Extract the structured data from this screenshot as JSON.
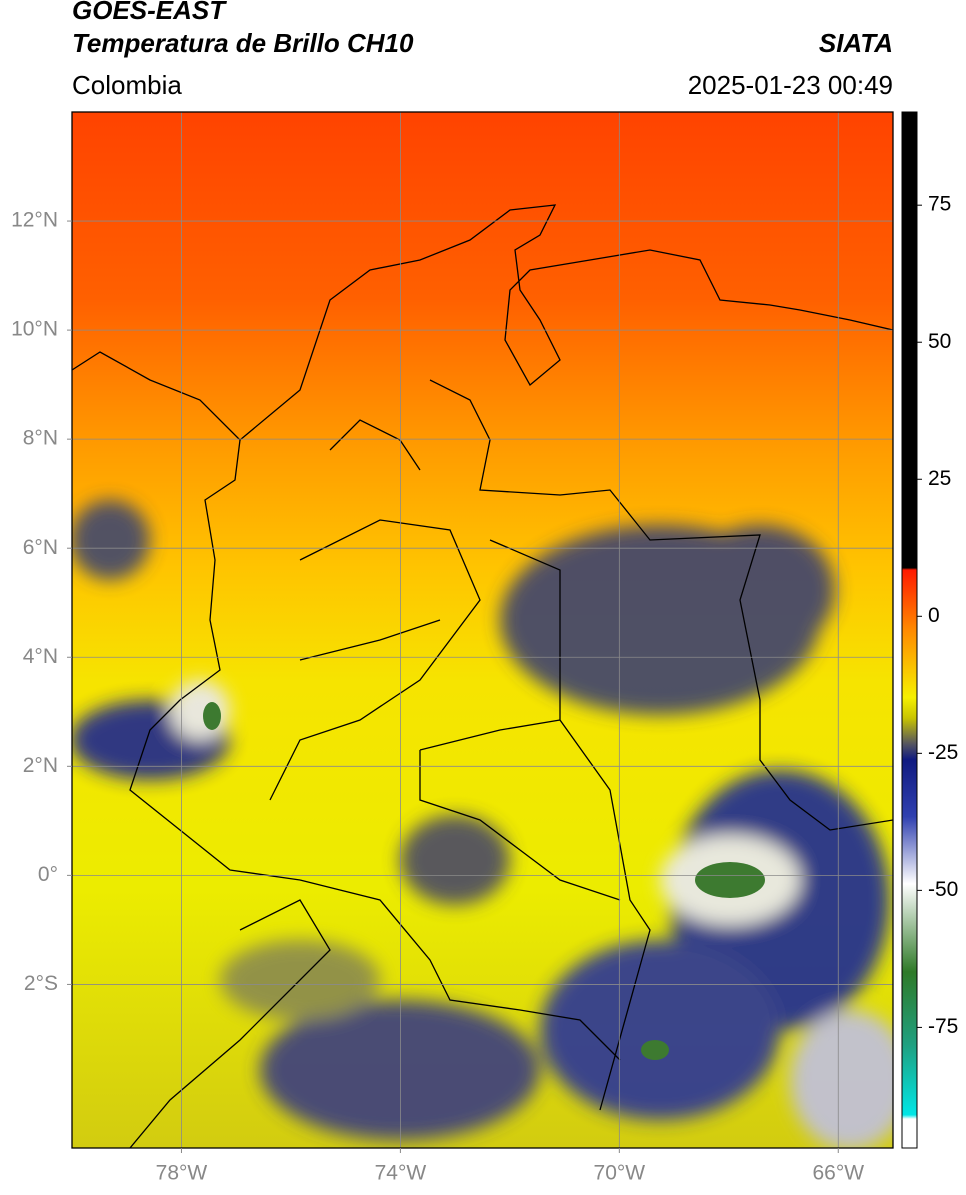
{
  "header": {
    "title": "GOES-EAST",
    "subtitle": "Temperatura de Brillo CH10",
    "region": "Colombia",
    "source": "SIATA",
    "datetime": "2025-01-23 00:49"
  },
  "map": {
    "xlim": [
      -80,
      -65
    ],
    "ylim": [
      -5,
      14
    ],
    "xticks": [
      {
        "value": -78,
        "label": "78°W"
      },
      {
        "value": -74,
        "label": "74°W"
      },
      {
        "value": -70,
        "label": "70°W"
      },
      {
        "value": -66,
        "label": "66°W"
      }
    ],
    "yticks": [
      {
        "value": 12,
        "label": "12°N"
      },
      {
        "value": 10,
        "label": "10°N"
      },
      {
        "value": 8,
        "label": "8°N"
      },
      {
        "value": 6,
        "label": "6°N"
      },
      {
        "value": 4,
        "label": "4°N"
      },
      {
        "value": 2,
        "label": "2°N"
      },
      {
        "value": 0,
        "label": "0°"
      },
      {
        "value": -2,
        "label": "2°S"
      }
    ],
    "grid": true
  },
  "colorbar": {
    "lim": [
      -97,
      92
    ],
    "ticks": [
      75,
      50,
      25,
      0,
      -25,
      -50,
      -75
    ]
  }
}
